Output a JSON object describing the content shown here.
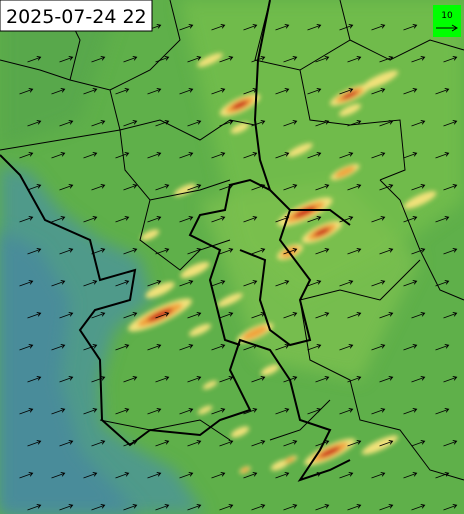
{
  "map": {
    "timestamp": "2025-07-24 22",
    "legend": {
      "label": "10"
    }
  }
}
